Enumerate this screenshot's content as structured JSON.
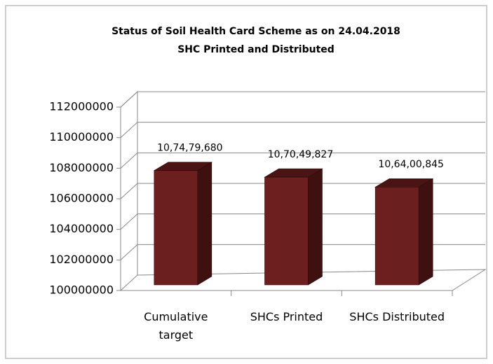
{
  "chart_data": {
    "type": "bar3d",
    "title": "Status of Soil Health Card Scheme  as on 24.04.2018",
    "subtitle": "SHC Printed and Distributed",
    "categories": [
      "Cumulative target",
      "SHCs Printed",
      "SHCs Distributed"
    ],
    "values": [
      107479680,
      107049827,
      106400845
    ],
    "value_labels": [
      "10,74,79,680",
      "10,70,49,827",
      "10,64,00,845"
    ],
    "color": "#6b1f1f",
    "ylim": [
      100000000,
      112000000
    ],
    "yticks": [
      100000000,
      102000000,
      104000000,
      106000000,
      108000000,
      110000000,
      112000000
    ],
    "grid": true
  }
}
